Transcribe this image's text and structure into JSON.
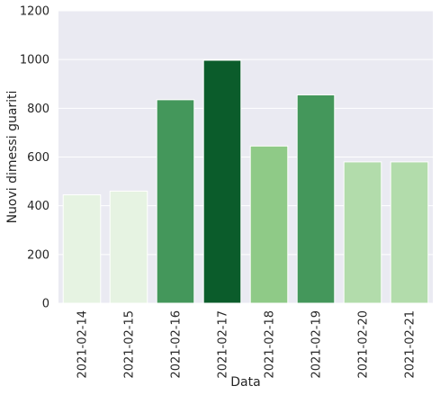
{
  "chart_data": {
    "type": "bar",
    "title": "",
    "xlabel": "Data",
    "ylabel": "Nuovi dimessi guariti",
    "categories": [
      "2021-02-14",
      "2021-02-15",
      "2021-02-16",
      "2021-02-17",
      "2021-02-18",
      "2021-02-19",
      "2021-02-20",
      "2021-02-21"
    ],
    "values": [
      445,
      460,
      835,
      997,
      645,
      855,
      580,
      580
    ],
    "bar_colors": [
      "#e6f3e2",
      "#e6f3e2",
      "#44975b",
      "#0b5c2b",
      "#8fca87",
      "#44975b",
      "#b2dcab",
      "#b2dcab"
    ],
    "ylim": [
      0,
      1200
    ],
    "yticks": [
      0,
      200,
      400,
      600,
      800,
      1000,
      1200
    ],
    "grid": true,
    "background_color": "#eaeaf2",
    "grid_color": "#ffffff"
  }
}
